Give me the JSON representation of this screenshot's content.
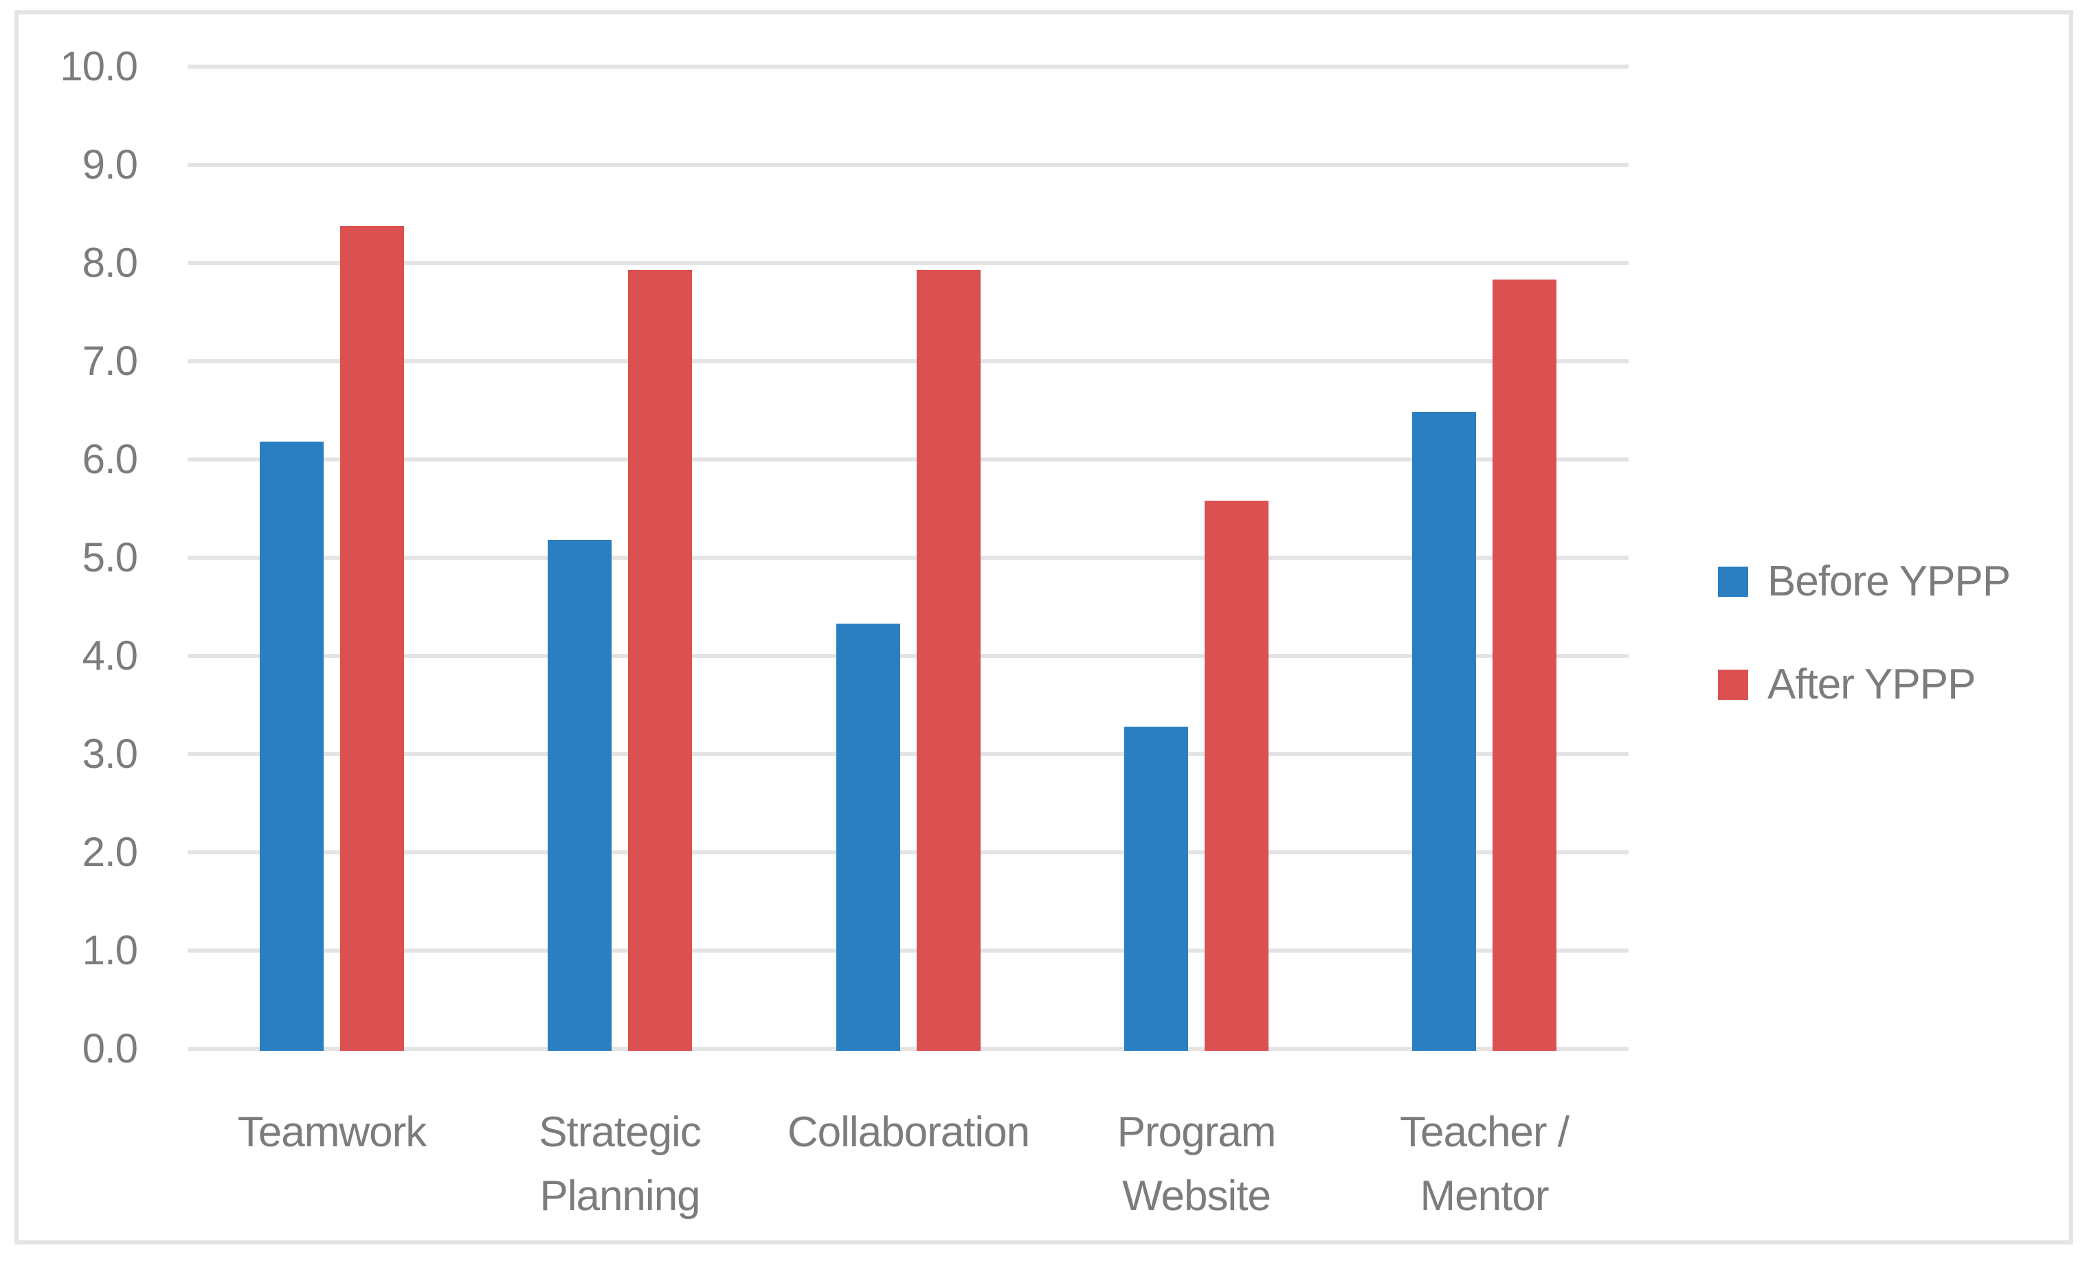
{
  "chart_data": {
    "type": "bar",
    "title": "",
    "xlabel": "",
    "ylabel": "",
    "categories": [
      "Teamwork",
      "Strategic Planning",
      "Collaboration",
      "Program Website",
      "Teacher / Mentor"
    ],
    "category_label_lines": [
      [
        "Teamwork"
      ],
      [
        "Strategic",
        "Planning"
      ],
      [
        "Collaboration"
      ],
      [
        "Program",
        "Website"
      ],
      [
        "Teacher /",
        "Mentor"
      ]
    ],
    "series": [
      {
        "name": "Before YPPP",
        "color": "#2A7FC1",
        "values": [
          6.2,
          5.2,
          4.35,
          3.3,
          6.5
        ]
      },
      {
        "name": "After YPPP",
        "color": "#DB5050",
        "values": [
          8.4,
          7.95,
          7.95,
          5.6,
          7.85
        ]
      }
    ],
    "ylim": [
      0,
      10
    ],
    "ytick_step": 1.0,
    "yticks": [
      "10.0",
      "9.0",
      "8.0",
      "7.0",
      "6.0",
      "5.0",
      "4.0",
      "3.0",
      "2.0",
      "1.0",
      "0.0"
    ],
    "grid": "horizontal",
    "legend_position": "right",
    "colors": {
      "axis_text": "#7C7C7C",
      "gridline": "#E4E4E4",
      "frame_border": "#E4E4E4",
      "background": "#FFFFFF"
    }
  }
}
